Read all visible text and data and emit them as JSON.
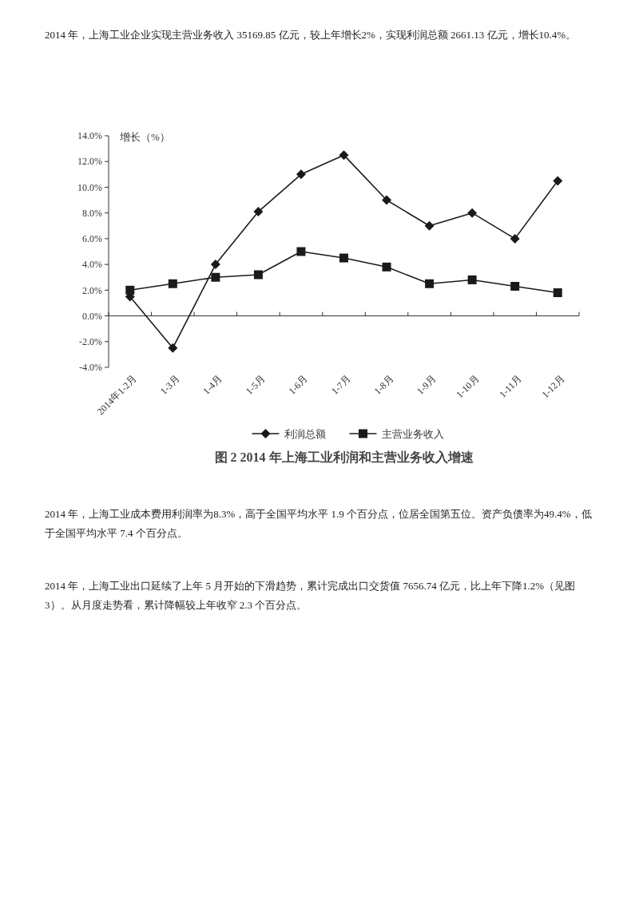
{
  "chart_data": {
    "type": "line",
    "title": "图 2 2014 年上海工业利润和主营业务收入增速",
    "ylabel": "增长（%）",
    "categories": [
      "2014年1-2月",
      "1-3月",
      "1-4月",
      "1-5月",
      "1-6月",
      "1-7月",
      "1-8月",
      "1-9月",
      "1-10月",
      "1-11月",
      "1-12月"
    ],
    "series": [
      {
        "name": "利润总额",
        "color": "#1a1a1a",
        "marker": "diamond",
        "values": [
          1.5,
          -2.5,
          4.0,
          8.1,
          11.0,
          12.5,
          9.0,
          7.0,
          8.0,
          6.0,
          10.5
        ]
      },
      {
        "name": "主营业务收入",
        "color": "#1a1a1a",
        "marker": "square",
        "values": [
          2.0,
          2.5,
          3.0,
          3.2,
          5.0,
          4.5,
          3.8,
          2.5,
          2.8,
          2.3,
          1.8
        ]
      }
    ],
    "ylim": [
      -4,
      14
    ],
    "yticks": [
      {
        "value": -4,
        "label": "-4.0%"
      },
      {
        "value": -2,
        "label": "-2.0%"
      },
      {
        "value": 0,
        "label": "0.0%"
      },
      {
        "value": 2,
        "label": "2.0%"
      },
      {
        "value": 4,
        "label": "4.0%"
      },
      {
        "value": 6,
        "label": "6.0%"
      },
      {
        "value": 8,
        "label": "8.0%"
      },
      {
        "value": 10,
        "label": "10.0%"
      },
      {
        "value": 12,
        "label": "12.0%"
      },
      {
        "value": 14,
        "label": "14.0%"
      }
    ],
    "legend": "bottom",
    "line_style": "solid",
    "annotations": [
      "2014 年，上海工业企业实现主营业务收入 35169.85 亿元，较上年增长2%，实现利润总额 2661.13 亿元，增长10.4%。",
      "2014 年，上海工业成本费用利润率为8.3%，高于全国平均水平 1.9 个百分点，位居全国第五位。资产负债率为49.4%，低于全国平均水平 7.4 个百分点。",
      "2014 年，上海工业出口延续了上年 5 月开始的下滑趋势，累计完成出口交货值 7656.74 亿元，比上年下降1.2%（见图 3）。从月度走势看，累计降幅较上年收窄 2.3 个百分点。"
    ]
  }
}
